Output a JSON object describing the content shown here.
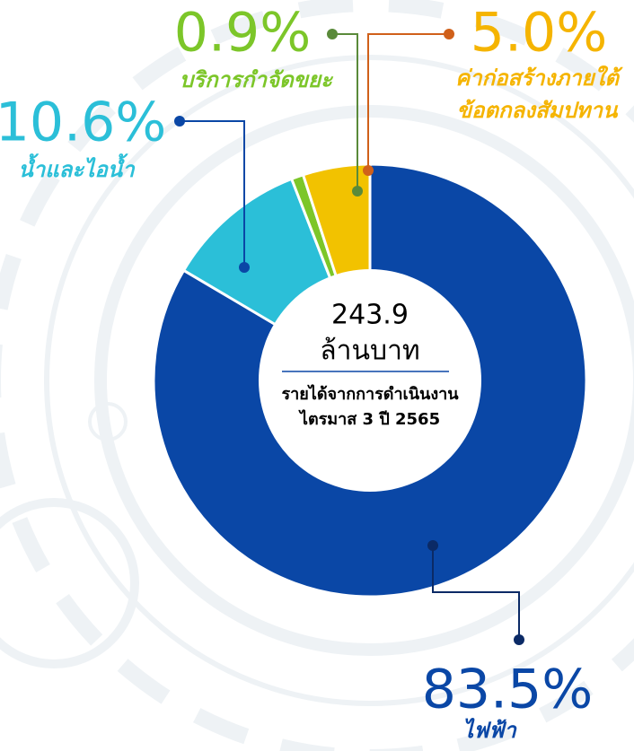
{
  "chart_data": {
    "type": "donut",
    "categories": [
      [
        "ไฟฟ้า"
      ],
      [
        "น้ำและไอน้ำ"
      ],
      [
        "บริการกำจัดขยะ"
      ],
      [
        "ค่าก่อสร้างภายใต้",
        "ข้อตกลงสัมปทาน"
      ]
    ],
    "values": [
      83.5,
      10.6,
      0.9,
      5.0
    ],
    "value_labels": [
      "83.5%",
      "10.6%",
      "0.9%",
      "5.0%"
    ],
    "colors": [
      "#0a47a6",
      "#2bbfd8",
      "#7cc629",
      "#f2c200"
    ],
    "label_colors": [
      "#0a47a6",
      "#2bbfd8",
      "#7cc629",
      "#f5b400"
    ],
    "leader_colors": [
      "#0b2a66",
      "#0a47a6",
      "#5a8a3a",
      "#d0601a"
    ],
    "center": {
      "value": "243.9",
      "unit": "ล้านบาท",
      "caption": [
        "รายได้จากการดำเนินงาน",
        "ไตรมาส 3 ปี 2565"
      ]
    }
  }
}
